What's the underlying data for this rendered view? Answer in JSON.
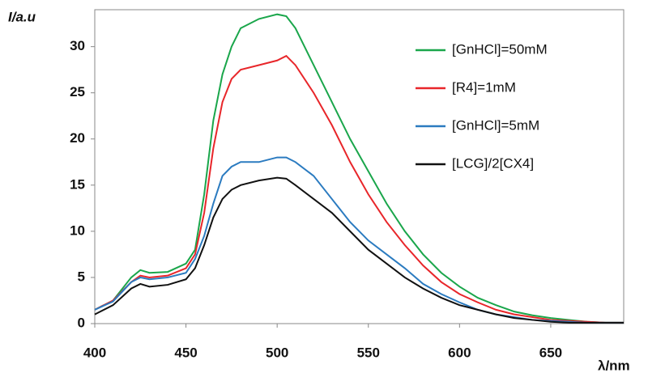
{
  "chart_data": {
    "type": "line",
    "x_label": "λ/nm",
    "y_label": "I/a.u",
    "x": [
      400,
      410,
      420,
      425,
      430,
      440,
      450,
      455,
      460,
      465,
      470,
      475,
      480,
      490,
      500,
      505,
      510,
      520,
      530,
      540,
      550,
      560,
      570,
      580,
      590,
      600,
      610,
      620,
      630,
      640,
      650,
      660,
      670,
      680,
      690
    ],
    "series": [
      {
        "name": "[GnHCl]=50mM",
        "color": "#1aa64b",
        "values": [
          1.5,
          2.5,
          5,
          5.8,
          5.5,
          5.6,
          6.5,
          8,
          14,
          22,
          27,
          30,
          32,
          33,
          33.5,
          33.3,
          32,
          28,
          24,
          20,
          16.5,
          13,
          10,
          7.5,
          5.5,
          4,
          2.8,
          2,
          1.3,
          0.9,
          0.6,
          0.4,
          0.2,
          0.1,
          0.1
        ]
      },
      {
        "name": "[R4]=1mM",
        "color": "#e8262a",
        "values": [
          1.5,
          2.5,
          4.5,
          5.2,
          5,
          5.2,
          6,
          7.5,
          12,
          19,
          24,
          26.5,
          27.5,
          28,
          28.5,
          29,
          28,
          25,
          21.5,
          17.5,
          14,
          11,
          8.5,
          6.3,
          4.5,
          3.2,
          2.3,
          1.5,
          1,
          0.7,
          0.4,
          0.3,
          0.2,
          0.1,
          0.1
        ]
      },
      {
        "name": "[GnHCl]=5mM",
        "color": "#2b7bc0",
        "values": [
          1.5,
          2.4,
          4.5,
          5,
          4.8,
          5,
          5.5,
          7,
          9.5,
          13,
          16,
          17,
          17.5,
          17.5,
          18,
          18,
          17.5,
          16,
          13.5,
          11,
          9,
          7.5,
          6,
          4.3,
          3.2,
          2.3,
          1.5,
          1,
          0.7,
          0.4,
          0.3,
          0.2,
          0.1,
          0.1,
          0.1
        ]
      },
      {
        "name": "[LCG]/2[CX4]",
        "color": "#111111",
        "values": [
          1,
          2,
          3.8,
          4.3,
          4,
          4.2,
          4.8,
          6,
          8.5,
          11.5,
          13.5,
          14.5,
          15,
          15.5,
          15.8,
          15.7,
          15,
          13.5,
          12,
          10,
          8,
          6.5,
          5,
          3.8,
          2.8,
          2,
          1.5,
          1,
          0.6,
          0.4,
          0.2,
          0.1,
          0.1,
          0.1,
          0.1
        ]
      }
    ],
    "xlim": [
      400,
      690
    ],
    "ylim": [
      0,
      34
    ],
    "xticks": [
      400,
      450,
      500,
      550,
      600,
      650
    ],
    "yticks": [
      0,
      5,
      10,
      15,
      20,
      25,
      30
    ],
    "legend": "upper right"
  }
}
